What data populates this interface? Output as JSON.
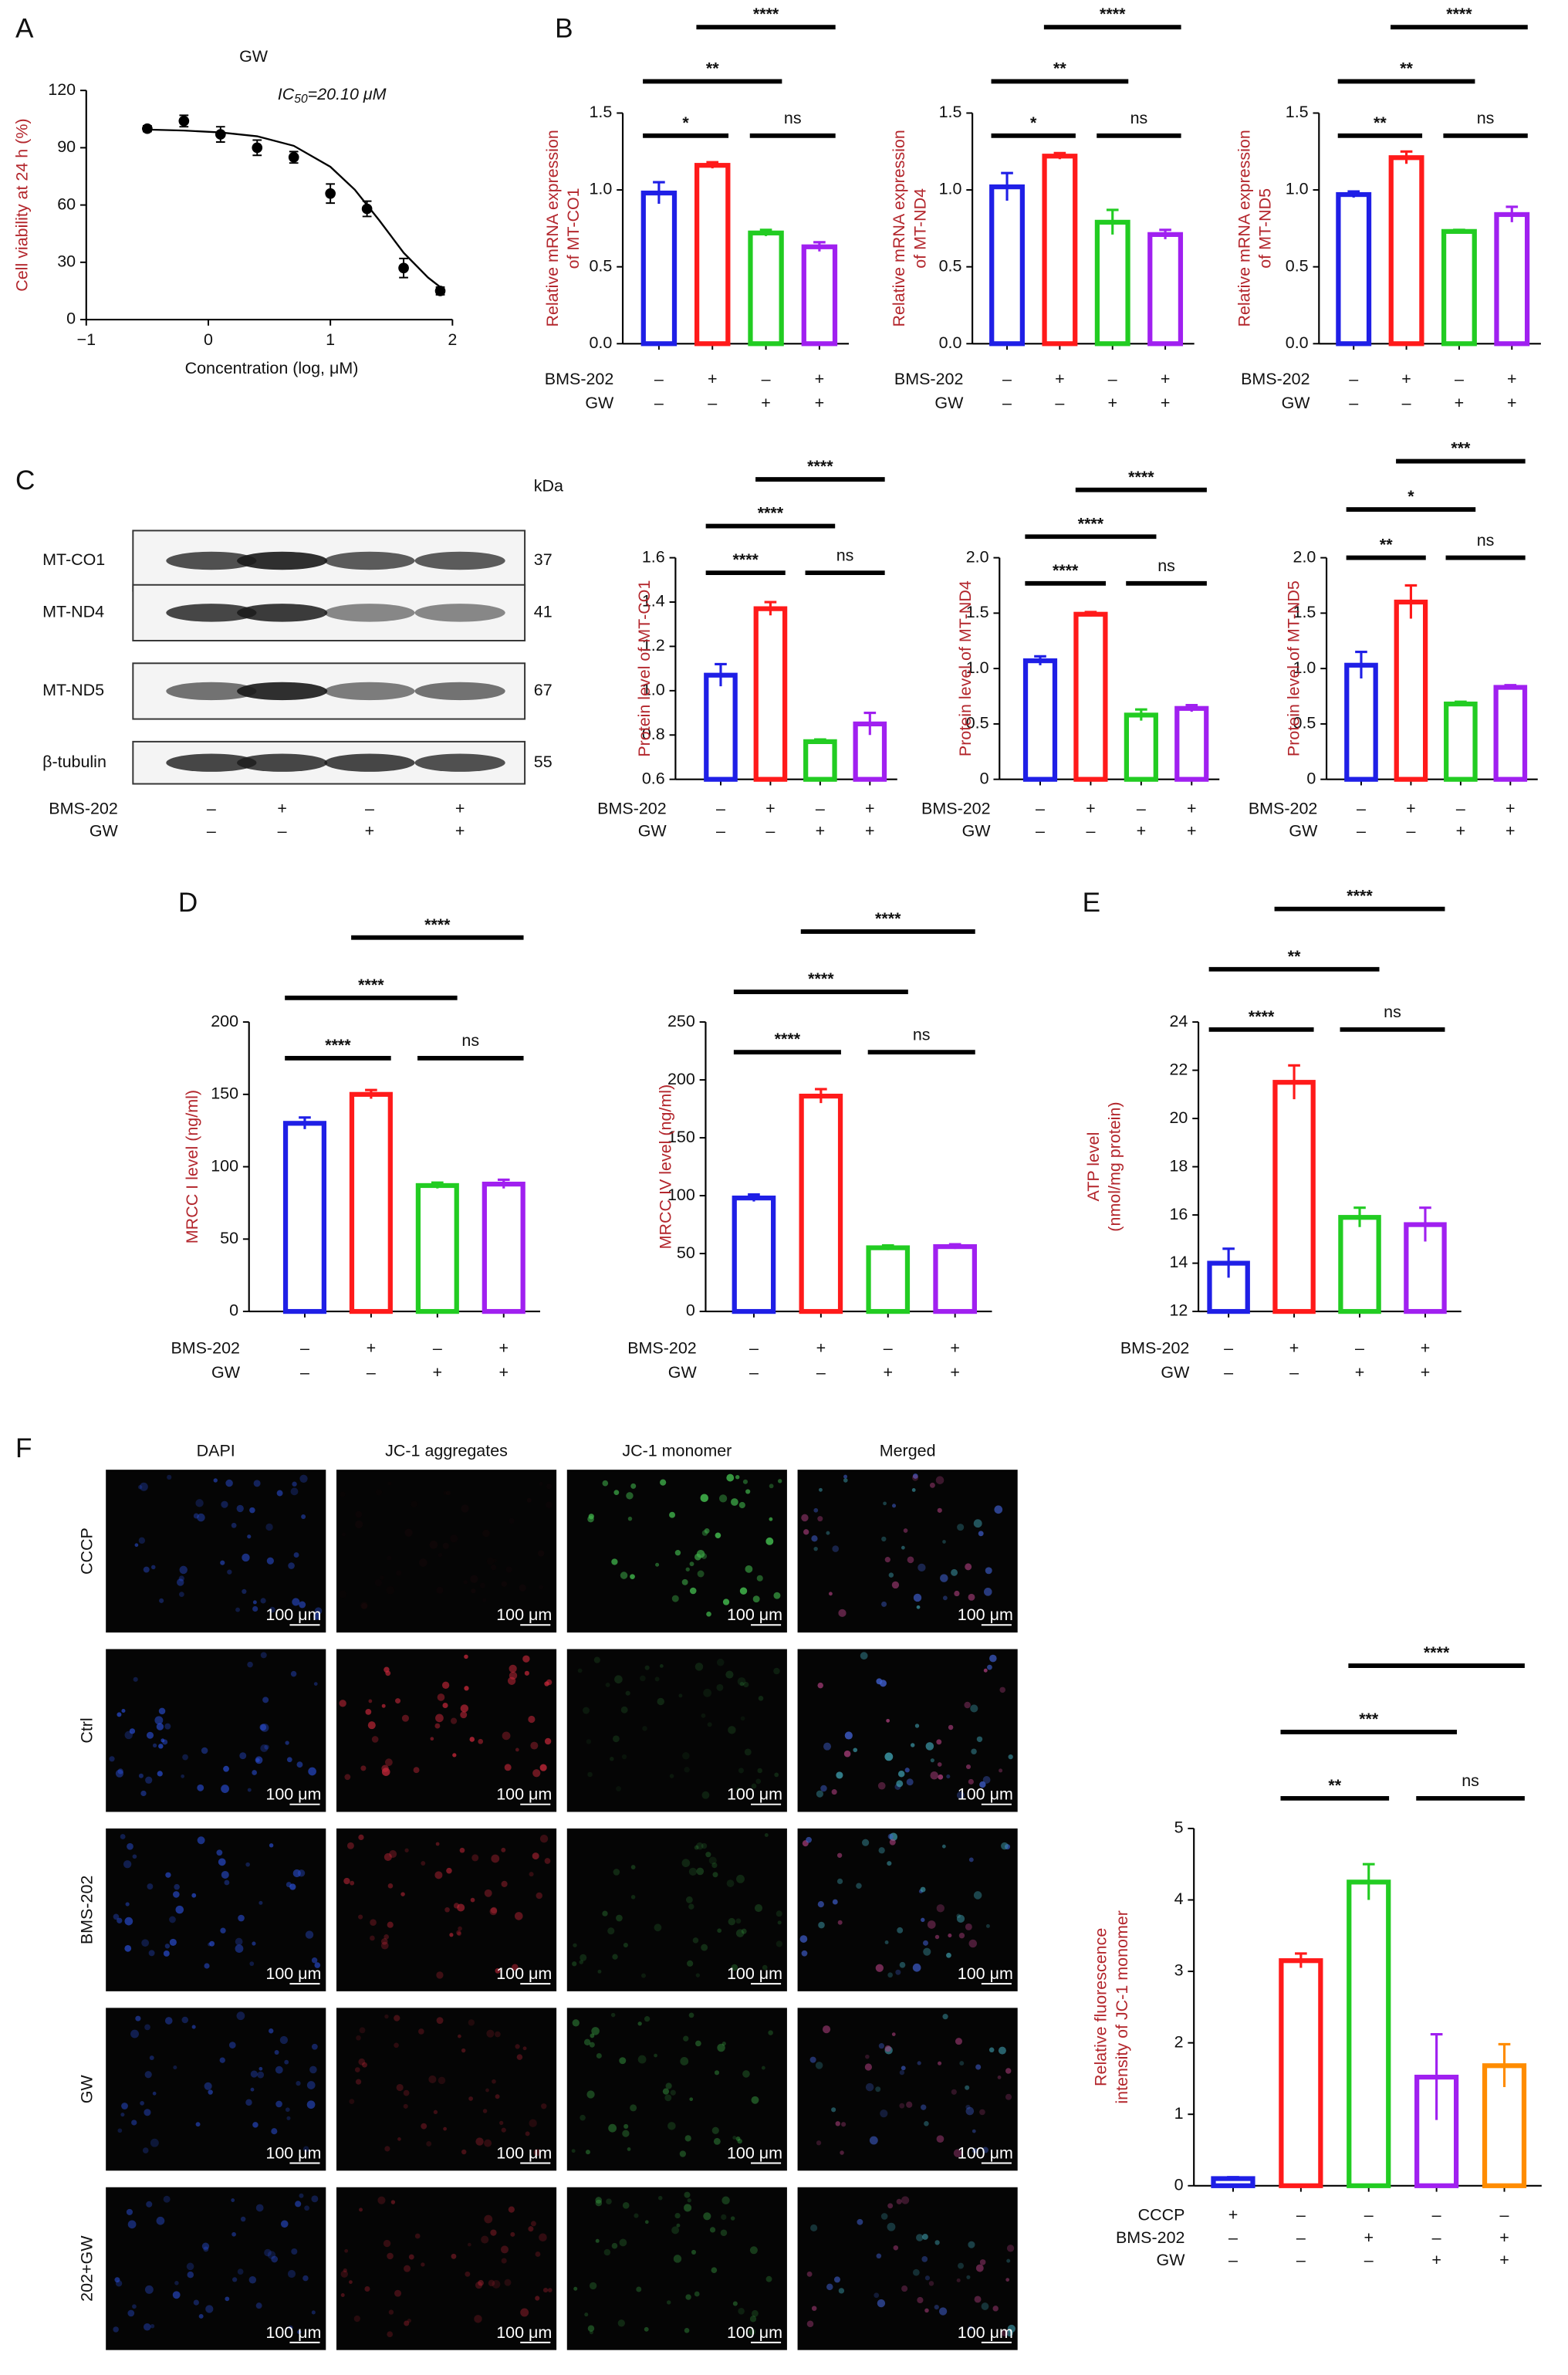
{
  "panel_labels": [
    "A",
    "B",
    "C",
    "D",
    "E",
    "F"
  ],
  "chart_data": [
    {
      "type": "line",
      "title": "GW",
      "annotation": [
        "IC",
        "50",
        "=20.10 μM"
      ],
      "xlabel": "Concentration (log, μM)",
      "ylabel": "Cell viability at 24 h (%)",
      "xlim": [
        -1,
        2
      ],
      "xticks": [
        {
          "value": -1,
          "label": "−1"
        },
        0,
        1,
        2
      ],
      "ylim": [
        0,
        120
      ],
      "yticks": [
        0,
        30,
        60,
        90,
        120
      ],
      "series": [
        {
          "color": "#000000",
          "marker": "circle",
          "x": [
            -0.5,
            -0.2,
            0.1,
            0.4,
            0.7,
            1.0,
            1.3,
            1.6,
            1.9
          ],
          "values": [
            100,
            104,
            97,
            90,
            85,
            66,
            58,
            27,
            15
          ],
          "errors": [
            1.5,
            3,
            4,
            4,
            3,
            5,
            4,
            5,
            2
          ]
        },
        {
          "color": "#000000",
          "marker": "none",
          "x": [
            -0.5,
            -0.2,
            0.1,
            0.4,
            0.7,
            1.0,
            1.2,
            1.4,
            1.6,
            1.8,
            1.9
          ],
          "values": [
            99.5,
            99,
            98,
            96,
            91,
            80,
            68,
            52,
            35,
            22,
            17
          ]
        }
      ]
    },
    {
      "type": "bar",
      "ylabel": [
        "Relative mRNA expression",
        "of MT-CO1"
      ],
      "ylim": [
        0,
        1.5
      ],
      "yticks": [
        {
          "value": 0,
          "label": "0.0"
        },
        0.5,
        {
          "value": 1,
          "label": "1.0"
        },
        1.5
      ],
      "values": [
        0.98,
        1.16,
        0.72,
        0.63
      ],
      "errors": [
        0.07,
        0.02,
        0.02,
        0.03
      ],
      "colors": [
        "#1f1fe6",
        "#ff1a1a",
        "#22cc22",
        "#a020f0"
      ],
      "conditions": [
        {
          "name": "BMS-202",
          "signs": [
            "–",
            "+",
            "–",
            "+"
          ]
        },
        {
          "name": "GW",
          "signs": [
            "–",
            "–",
            "+",
            "+"
          ]
        }
      ],
      "significance": [
        {
          "pair": [
            0,
            1
          ],
          "label": "*"
        },
        {
          "pair": [
            2,
            3
          ],
          "label": "ns"
        },
        {
          "pair": [
            0,
            2
          ],
          "label": "**"
        },
        {
          "pair": [
            1,
            3
          ],
          "label": "****"
        }
      ]
    },
    {
      "type": "bar",
      "ylabel": [
        "Relative mRNA expression",
        "of MT-ND4"
      ],
      "ylim": [
        0,
        1.5
      ],
      "yticks": [
        {
          "value": 0,
          "label": "0.0"
        },
        0.5,
        {
          "value": 1,
          "label": "1.0"
        },
        1.5
      ],
      "values": [
        1.02,
        1.22,
        0.79,
        0.71
      ],
      "errors": [
        0.09,
        0.02,
        0.08,
        0.03
      ],
      "colors": [
        "#1f1fe6",
        "#ff1a1a",
        "#22cc22",
        "#a020f0"
      ],
      "conditions": [
        {
          "name": "BMS-202",
          "signs": [
            "–",
            "+",
            "–",
            "+"
          ]
        },
        {
          "name": "GW",
          "signs": [
            "–",
            "–",
            "+",
            "+"
          ]
        }
      ],
      "significance": [
        {
          "pair": [
            0,
            1
          ],
          "label": "*"
        },
        {
          "pair": [
            2,
            3
          ],
          "label": "ns"
        },
        {
          "pair": [
            0,
            2
          ],
          "label": "**"
        },
        {
          "pair": [
            1,
            3
          ],
          "label": "****"
        }
      ]
    },
    {
      "type": "bar",
      "ylabel": [
        "Relative mRNA expression",
        "of MT-ND5"
      ],
      "ylim": [
        0,
        1.5
      ],
      "yticks": [
        {
          "value": 0,
          "label": "0.0"
        },
        0.5,
        {
          "value": 1,
          "label": "1.0"
        },
        1.5
      ],
      "values": [
        0.97,
        1.21,
        0.73,
        0.84
      ],
      "errors": [
        0.02,
        0.04,
        0.01,
        0.05
      ],
      "colors": [
        "#1f1fe6",
        "#ff1a1a",
        "#22cc22",
        "#a020f0"
      ],
      "conditions": [
        {
          "name": "BMS-202",
          "signs": [
            "–",
            "+",
            "–",
            "+"
          ]
        },
        {
          "name": "GW",
          "signs": [
            "–",
            "–",
            "+",
            "+"
          ]
        }
      ],
      "significance": [
        {
          "pair": [
            0,
            1
          ],
          "label": "**"
        },
        {
          "pair": [
            2,
            3
          ],
          "label": "ns"
        },
        {
          "pair": [
            0,
            2
          ],
          "label": "**"
        },
        {
          "pair": [
            1,
            3
          ],
          "label": "****"
        }
      ]
    },
    {
      "type": "bar",
      "ylabel": [
        "Protein level of MT-CO1"
      ],
      "ylim": [
        0.6,
        1.6
      ],
      "yticks": [
        0.6,
        0.8,
        {
          "value": 1,
          "label": "1.0"
        },
        1.2,
        1.4,
        1.6
      ],
      "values": [
        1.07,
        1.37,
        0.77,
        0.85
      ],
      "errors": [
        0.05,
        0.03,
        0.01,
        0.05
      ],
      "colors": [
        "#1f1fe6",
        "#ff1a1a",
        "#22cc22",
        "#a020f0"
      ],
      "conditions": [
        {
          "name": "BMS-202",
          "signs": [
            "–",
            "+",
            "–",
            "+"
          ]
        },
        {
          "name": "GW",
          "signs": [
            "–",
            "–",
            "+",
            "+"
          ]
        }
      ],
      "significance": [
        {
          "pair": [
            0,
            1
          ],
          "label": "****"
        },
        {
          "pair": [
            2,
            3
          ],
          "label": "ns"
        },
        {
          "pair": [
            0,
            2
          ],
          "label": "****"
        },
        {
          "pair": [
            1,
            3
          ],
          "label": "****"
        }
      ]
    },
    {
      "type": "bar",
      "ylabel": [
        "Protein level of MT-ND4"
      ],
      "ylim": [
        0,
        2
      ],
      "yticks": [
        0,
        0.5,
        {
          "value": 1,
          "label": "1.0"
        },
        1.5,
        {
          "value": 2,
          "label": "2.0"
        }
      ],
      "values": [
        1.07,
        1.49,
        0.58,
        0.64
      ],
      "errors": [
        0.04,
        0.02,
        0.05,
        0.03
      ],
      "colors": [
        "#1f1fe6",
        "#ff1a1a",
        "#22cc22",
        "#a020f0"
      ],
      "conditions": [
        {
          "name": "BMS-202",
          "signs": [
            "–",
            "+",
            "–",
            "+"
          ]
        },
        {
          "name": "GW",
          "signs": [
            "–",
            "–",
            "+",
            "+"
          ]
        }
      ],
      "significance": [
        {
          "pair": [
            0,
            1
          ],
          "label": "****"
        },
        {
          "pair": [
            2,
            3
          ],
          "label": "ns"
        },
        {
          "pair": [
            0,
            2
          ],
          "label": "****"
        },
        {
          "pair": [
            1,
            3
          ],
          "label": "****"
        }
      ]
    },
    {
      "type": "bar",
      "ylabel": [
        "Protein level of MT-ND5"
      ],
      "ylim": [
        0,
        2
      ],
      "yticks": [
        0,
        0.5,
        {
          "value": 1,
          "label": "1.0"
        },
        1.5,
        {
          "value": 2,
          "label": "2.0"
        }
      ],
      "values": [
        1.03,
        1.6,
        0.68,
        0.83
      ],
      "errors": [
        0.12,
        0.15,
        0.02,
        0.02
      ],
      "colors": [
        "#1f1fe6",
        "#ff1a1a",
        "#22cc22",
        "#a020f0"
      ],
      "conditions": [
        {
          "name": "BMS-202",
          "signs": [
            "–",
            "+",
            "–",
            "+"
          ]
        },
        {
          "name": "GW",
          "signs": [
            "–",
            "–",
            "+",
            "+"
          ]
        }
      ],
      "significance": [
        {
          "pair": [
            0,
            1
          ],
          "label": "**"
        },
        {
          "pair": [
            2,
            3
          ],
          "label": "ns"
        },
        {
          "pair": [
            0,
            2
          ],
          "label": "*"
        },
        {
          "pair": [
            1,
            3
          ],
          "label": "***"
        }
      ]
    },
    {
      "type": "bar",
      "ylabel": [
        "MRCC I level (ng/ml)"
      ],
      "ylim": [
        0,
        200
      ],
      "yticks": [
        0,
        50,
        100,
        150,
        200
      ],
      "values": [
        130,
        150,
        87,
        88
      ],
      "errors": [
        4,
        3,
        2,
        3
      ],
      "colors": [
        "#1f1fe6",
        "#ff1a1a",
        "#22cc22",
        "#a020f0"
      ],
      "conditions": [
        {
          "name": "BMS-202",
          "signs": [
            "–",
            "+",
            "–",
            "+"
          ]
        },
        {
          "name": "GW",
          "signs": [
            "–",
            "–",
            "+",
            "+"
          ]
        }
      ],
      "significance": [
        {
          "pair": [
            0,
            1
          ],
          "label": "****"
        },
        {
          "pair": [
            2,
            3
          ],
          "label": "ns"
        },
        {
          "pair": [
            0,
            2
          ],
          "label": "****"
        },
        {
          "pair": [
            1,
            3
          ],
          "label": "****"
        }
      ]
    },
    {
      "type": "bar",
      "ylabel": [
        "MRCC IV level (ng/ml)"
      ],
      "ylim": [
        0,
        250
      ],
      "yticks": [
        0,
        50,
        100,
        150,
        200,
        250
      ],
      "values": [
        98,
        186,
        55,
        56
      ],
      "errors": [
        3,
        6,
        2,
        2
      ],
      "colors": [
        "#1f1fe6",
        "#ff1a1a",
        "#22cc22",
        "#a020f0"
      ],
      "conditions": [
        {
          "name": "BMS-202",
          "signs": [
            "–",
            "+",
            "–",
            "+"
          ]
        },
        {
          "name": "GW",
          "signs": [
            "–",
            "–",
            "+",
            "+"
          ]
        }
      ],
      "significance": [
        {
          "pair": [
            0,
            1
          ],
          "label": "****"
        },
        {
          "pair": [
            2,
            3
          ],
          "label": "ns"
        },
        {
          "pair": [
            0,
            2
          ],
          "label": "****"
        },
        {
          "pair": [
            1,
            3
          ],
          "label": "****"
        }
      ]
    },
    {
      "type": "bar",
      "ylabel": [
        "ATP level",
        "(nmol/mg protein)"
      ],
      "ylim": [
        12,
        24
      ],
      "yticks": [
        12,
        14,
        16,
        18,
        20,
        22,
        24
      ],
      "values": [
        14.0,
        21.5,
        15.9,
        15.6
      ],
      "errors": [
        0.6,
        0.7,
        0.4,
        0.7
      ],
      "colors": [
        "#1f1fe6",
        "#ff1a1a",
        "#22cc22",
        "#a020f0"
      ],
      "conditions": [
        {
          "name": "BMS-202",
          "signs": [
            "–",
            "+",
            "–",
            "+"
          ]
        },
        {
          "name": "GW",
          "signs": [
            "–",
            "–",
            "+",
            "+"
          ]
        }
      ],
      "significance": [
        {
          "pair": [
            0,
            1
          ],
          "label": "****"
        },
        {
          "pair": [
            2,
            3
          ],
          "label": "ns"
        },
        {
          "pair": [
            0,
            2
          ],
          "label": "**"
        },
        {
          "pair": [
            1,
            3
          ],
          "label": "****"
        }
      ]
    },
    {
      "type": "bar",
      "ylabel": [
        "Relative fluorescence",
        "intensity of JC-1 monomer"
      ],
      "ylim": [
        0,
        5
      ],
      "yticks": [
        0,
        1,
        2,
        3,
        4,
        5
      ],
      "values": [
        0.1,
        3.15,
        4.25,
        1.52,
        1.68
      ],
      "errors": [
        0.02,
        0.1,
        0.25,
        0.6,
        0.3
      ],
      "colors": [
        "#1f1fe6",
        "#ff1a1a",
        "#22cc22",
        "#a020f0",
        "#ff8c00"
      ],
      "conditions": [
        {
          "name": "CCCP",
          "signs": [
            "+",
            "–",
            "–",
            "–",
            "–"
          ]
        },
        {
          "name": "BMS-202",
          "signs": [
            "–",
            "–",
            "+",
            "–",
            "+"
          ]
        },
        {
          "name": "GW",
          "signs": [
            "–",
            "–",
            "–",
            "+",
            "+"
          ]
        }
      ],
      "significance": [
        {
          "pair": [
            1,
            2
          ],
          "label": "**"
        },
        {
          "pair": [
            3,
            4
          ],
          "label": "ns"
        },
        {
          "pair": [
            1,
            3
          ],
          "label": "***"
        },
        {
          "pair": [
            2,
            4
          ],
          "label": "****"
        }
      ]
    }
  ],
  "western_blot": {
    "unit": "kDa",
    "proteins": [
      {
        "label": "MT-CO1",
        "kda": 37
      },
      {
        "label": "MT-ND4",
        "kda": 41
      },
      {
        "label": "MT-ND5",
        "kda": 67
      },
      {
        "label": "β-tubulin",
        "kda": 55
      }
    ],
    "conditions": [
      {
        "name": "BMS-202",
        "signs": [
          "–",
          "+",
          "–",
          "+"
        ]
      },
      {
        "name": "GW",
        "signs": [
          "–",
          "–",
          "+",
          "+"
        ]
      }
    ]
  },
  "micrographs": {
    "columns": [
      "DAPI",
      "JC-1 aggregates",
      "JC-1 monomer",
      "Merged"
    ],
    "rows": [
      "CCCP",
      "Ctrl",
      "BMS-202",
      "GW",
      "202+GW"
    ],
    "scale_bar": "100 μm"
  }
}
